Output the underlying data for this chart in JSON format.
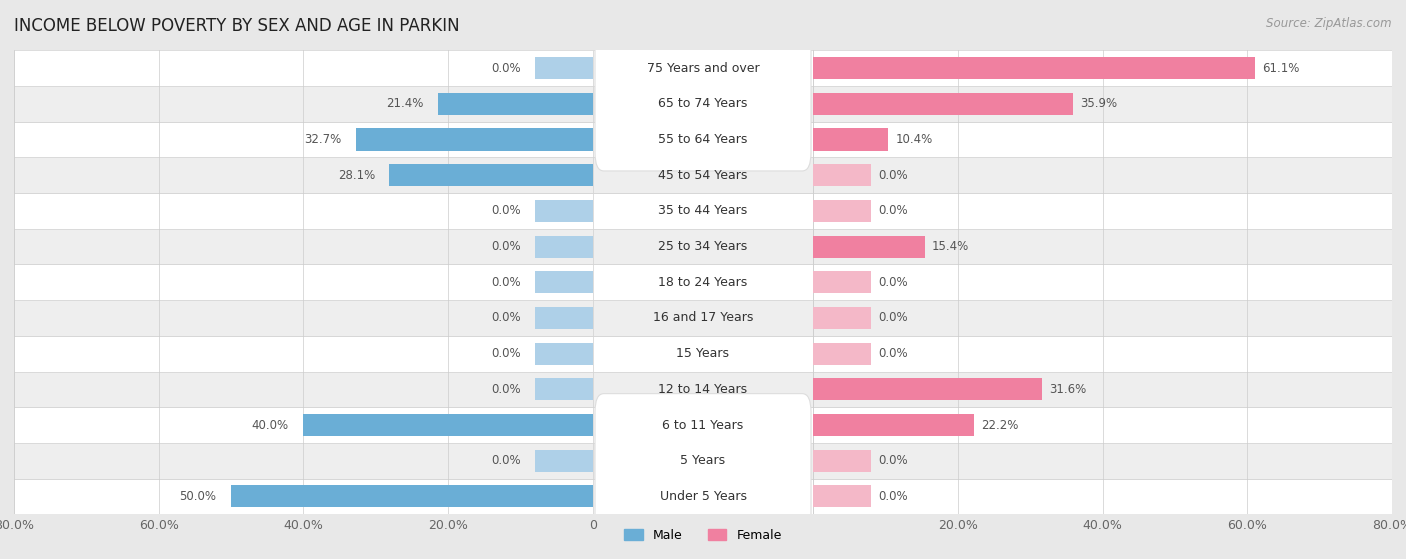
{
  "title": "INCOME BELOW POVERTY BY SEX AND AGE IN PARKIN",
  "source": "Source: ZipAtlas.com",
  "categories": [
    "Under 5 Years",
    "5 Years",
    "6 to 11 Years",
    "12 to 14 Years",
    "15 Years",
    "16 and 17 Years",
    "18 to 24 Years",
    "25 to 34 Years",
    "35 to 44 Years",
    "45 to 54 Years",
    "55 to 64 Years",
    "65 to 74 Years",
    "75 Years and over"
  ],
  "male": [
    50.0,
    0.0,
    40.0,
    0.0,
    0.0,
    0.0,
    0.0,
    0.0,
    0.0,
    28.1,
    32.7,
    21.4,
    0.0
  ],
  "female": [
    0.0,
    0.0,
    22.2,
    31.6,
    0.0,
    0.0,
    0.0,
    15.4,
    0.0,
    0.0,
    10.4,
    35.9,
    61.1
  ],
  "male_color_dark": "#6aaed6",
  "male_color_light": "#aed0e8",
  "female_color_dark": "#f080a0",
  "female_color_light": "#f4b8c8",
  "male_label": "Male",
  "female_label": "Female",
  "xlim": 80.0,
  "bar_height": 0.62,
  "stub_size": 8.0,
  "bg_color": "#e8e8e8",
  "row_bg_white": "#ffffff",
  "row_bg_gray": "#eeeeee",
  "title_fontsize": 12,
  "cat_fontsize": 9,
  "val_fontsize": 8.5,
  "axis_fontsize": 9,
  "source_fontsize": 8.5
}
